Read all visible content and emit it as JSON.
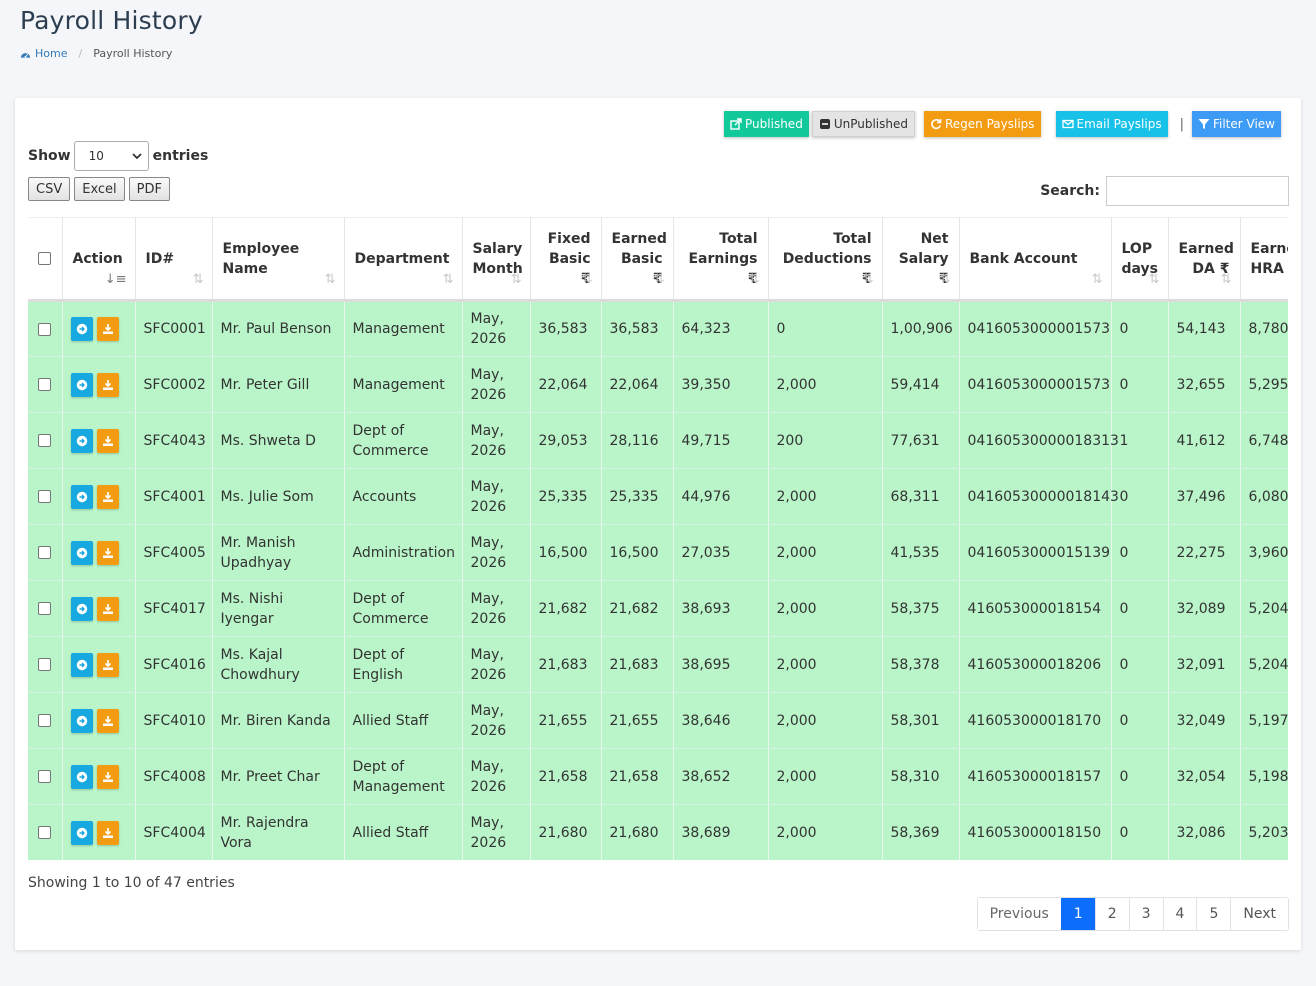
{
  "page": {
    "title": "Payroll History"
  },
  "breadcrumb": {
    "home": "Home",
    "current": "Payroll History"
  },
  "toolbar": {
    "published": "Published",
    "unpublished": "UnPublished",
    "regen": "Regen Payslips",
    "email": "Email Payslips",
    "separator": "|",
    "filter": "Filter View"
  },
  "length": {
    "show": "Show",
    "value": "10",
    "entries": "entries"
  },
  "export": {
    "csv": "CSV",
    "excel": "Excel",
    "pdf": "PDF"
  },
  "search": {
    "label": "Search:",
    "value": ""
  },
  "columns": [
    {
      "label": "Action",
      "label2": ""
    },
    {
      "label": "ID#",
      "label2": ""
    },
    {
      "label": "Employee",
      "label2": "Name"
    },
    {
      "label": "Department",
      "label2": ""
    },
    {
      "label": "Salary",
      "label2": "Month"
    },
    {
      "label": "Fixed",
      "label2": "Basic ₹"
    },
    {
      "label": "Earned",
      "label2": "Basic ₹"
    },
    {
      "label": "Total",
      "label2": "Earnings ₹"
    },
    {
      "label": "Total",
      "label2": "Deductions ₹"
    },
    {
      "label": "Net",
      "label2": "Salary ₹"
    },
    {
      "label": "Bank Account",
      "label2": ""
    },
    {
      "label": "LOP",
      "label2": "days"
    },
    {
      "label": "Earned",
      "label2": "DA ₹"
    },
    {
      "label": "Earne",
      "label2": "HRA"
    }
  ],
  "rows": [
    {
      "id": "SFC0001",
      "name": "Mr. Paul Benson",
      "dept": "Management",
      "month": "May, 2026",
      "fixed": "36,583",
      "earned": "36,583",
      "total_earn": "64,323",
      "total_ded": "0",
      "net": "1,00,906",
      "bank": "0416053000001573",
      "lop": "0",
      "da": "54,143",
      "hra": "8,780"
    },
    {
      "id": "SFC0002",
      "name": "Mr. Peter Gill",
      "dept": "Management",
      "month": "May, 2026",
      "fixed": "22,064",
      "earned": "22,064",
      "total_earn": "39,350",
      "total_ded": "2,000",
      "net": "59,414",
      "bank": "0416053000001573",
      "lop": "0",
      "da": "32,655",
      "hra": "5,295"
    },
    {
      "id": "SFC4043",
      "name": "Ms. Shweta D",
      "dept": "Dept of Commerce",
      "month": "May, 2026",
      "fixed": "29,053",
      "earned": "28,116",
      "total_earn": "49,715",
      "total_ded": "200",
      "net": "77,631",
      "bank": "04160530000018313",
      "lop": "1",
      "da": "41,612",
      "hra": "6,748"
    },
    {
      "id": "SFC4001",
      "name": "Ms. Julie Som",
      "dept": "Accounts",
      "month": "May, 2026",
      "fixed": "25,335",
      "earned": "25,335",
      "total_earn": "44,976",
      "total_ded": "2,000",
      "net": "68,311",
      "bank": "04160530000018143",
      "lop": "0",
      "da": "37,496",
      "hra": "6,080"
    },
    {
      "id": "SFC4005",
      "name": "Mr. Manish Upadhyay",
      "dept": "Administration",
      "month": "May, 2026",
      "fixed": "16,500",
      "earned": "16,500",
      "total_earn": "27,035",
      "total_ded": "2,000",
      "net": "41,535",
      "bank": "0416053000015139",
      "lop": "0",
      "da": "22,275",
      "hra": "3,960"
    },
    {
      "id": "SFC4017",
      "name": "Ms. Nishi Iyengar",
      "dept": "Dept of Commerce",
      "month": "May, 2026",
      "fixed": "21,682",
      "earned": "21,682",
      "total_earn": "38,693",
      "total_ded": "2,000",
      "net": "58,375",
      "bank": "416053000018154",
      "lop": "0",
      "da": "32,089",
      "hra": "5,204"
    },
    {
      "id": "SFC4016",
      "name": "Ms. Kajal Chowdhury",
      "dept": "Dept of English",
      "month": "May, 2026",
      "fixed": "21,683",
      "earned": "21,683",
      "total_earn": "38,695",
      "total_ded": "2,000",
      "net": "58,378",
      "bank": "416053000018206",
      "lop": "0",
      "da": "32,091",
      "hra": "5,204"
    },
    {
      "id": "SFC4010",
      "name": "Mr. Biren Kanda",
      "dept": "Allied Staff",
      "month": "May, 2026",
      "fixed": "21,655",
      "earned": "21,655",
      "total_earn": "38,646",
      "total_ded": "2,000",
      "net": "58,301",
      "bank": "416053000018170",
      "lop": "0",
      "da": "32,049",
      "hra": "5,197"
    },
    {
      "id": "SFC4008",
      "name": "Mr. Preet Char",
      "dept": "Dept of Management",
      "month": "May, 2026",
      "fixed": "21,658",
      "earned": "21,658",
      "total_earn": "38,652",
      "total_ded": "2,000",
      "net": "58,310",
      "bank": "416053000018157",
      "lop": "0",
      "da": "32,054",
      "hra": "5,198"
    },
    {
      "id": "SFC4004",
      "name": "Mr. Rajendra Vora",
      "dept": "Allied Staff",
      "month": "May, 2026",
      "fixed": "21,680",
      "earned": "21,680",
      "total_earn": "38,689",
      "total_ded": "2,000",
      "net": "58,369",
      "bank": "416053000018150",
      "lop": "0",
      "da": "32,086",
      "hra": "5,203"
    }
  ],
  "info": "Showing 1 to 10 of 47 entries",
  "pagination": {
    "previous": "Previous",
    "pages": [
      "1",
      "2",
      "3",
      "4",
      "5"
    ],
    "next": "Next",
    "active": "1"
  },
  "colors": {
    "row_bg": "#b9f5c9",
    "published": "#12c99b",
    "regen": "#f39c12",
    "email": "#17c1e8",
    "filter": "#3d9bf5",
    "page_active": "#0d6efd"
  },
  "icons": {
    "home": "dashboard-icon",
    "go": "arrow-circle-right-icon",
    "download": "download-icon",
    "sort": "sort-icon"
  }
}
